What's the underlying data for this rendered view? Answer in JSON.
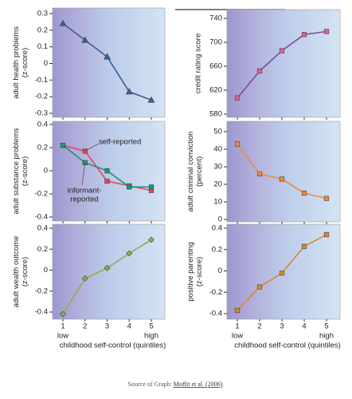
{
  "chart_data": [
    {
      "type": "line",
      "ylabel": [
        "adult health problems",
        "(z-score)"
      ],
      "marker": "triangle",
      "ylim": [
        -0.3,
        0.3
      ],
      "yticks": [
        0.3,
        0.2,
        0.1,
        0,
        -0.1,
        -0.2,
        -0.3
      ],
      "series": [
        {
          "color": "#3b5e96",
          "values": [
            0.24,
            0.14,
            0.04,
            -0.17,
            -0.22
          ]
        }
      ]
    },
    {
      "type": "line",
      "ylabel": [
        "adult substance problems",
        "(z-score)"
      ],
      "marker": "square",
      "ylim": [
        -0.4,
        0.4
      ],
      "yticks": [
        0.4,
        0.2,
        0,
        -0.2,
        -0.4
      ],
      "series": [
        {
          "name": "self-reported",
          "color": "#e04a55",
          "values": [
            0.22,
            0.17,
            -0.09,
            -0.13,
            -0.17
          ]
        },
        {
          "name": [
            "informant-",
            "reported"
          ],
          "color": "#17977a",
          "values": [
            0.22,
            0.07,
            0,
            -0.14,
            -0.14
          ]
        }
      ]
    },
    {
      "type": "line",
      "ylabel": [
        "adult wealth outcome",
        "(z-score)"
      ],
      "marker": "diamond",
      "ylim": [
        -0.4,
        0.4
      ],
      "yticks": [
        0.4,
        0.2,
        0,
        -0.2,
        -0.4
      ],
      "series": [
        {
          "color": "#8ab04a",
          "values": [
            -0.42,
            -0.08,
            0.02,
            0.16,
            0.29
          ]
        }
      ]
    },
    {
      "type": "line",
      "ylabel": [
        "credit rating score"
      ],
      "marker": "square",
      "ylim": [
        580,
        740
      ],
      "yticks": [
        740,
        700,
        660,
        620,
        580
      ],
      "series": [
        {
          "color": "#7a4a9e",
          "values": [
            607,
            652,
            686,
            713,
            718
          ]
        }
      ]
    },
    {
      "type": "line",
      "ylabel": [
        "adult criminal conviction",
        "(percent)"
      ],
      "marker": "square",
      "ylim": [
        0,
        50
      ],
      "yticks": [
        50,
        40,
        30,
        20,
        10,
        0
      ],
      "series": [
        {
          "color": "#ee8a3c",
          "values": [
            43,
            26,
            23,
            15,
            12
          ]
        }
      ]
    },
    {
      "type": "line",
      "ylabel": [
        "positive parenting",
        "(z-score)"
      ],
      "marker": "square",
      "ylim": [
        -0.4,
        0.4
      ],
      "yticks": [
        0.4,
        0.2,
        0,
        -0.2,
        -0.4
      ],
      "series": [
        {
          "color": "#d98a2a",
          "values": [
            -0.37,
            -0.15,
            -0.02,
            0.23,
            0.34
          ]
        }
      ]
    }
  ],
  "x_axis": {
    "categories": [
      "1",
      "2",
      "3",
      "4",
      "5"
    ],
    "low": "low",
    "high": "high",
    "label": "childhood self-control (quintiles)"
  },
  "source": {
    "prefix": "Source of Graph:",
    "link": "Moffit et al. (2006)",
    "suffix": "."
  }
}
